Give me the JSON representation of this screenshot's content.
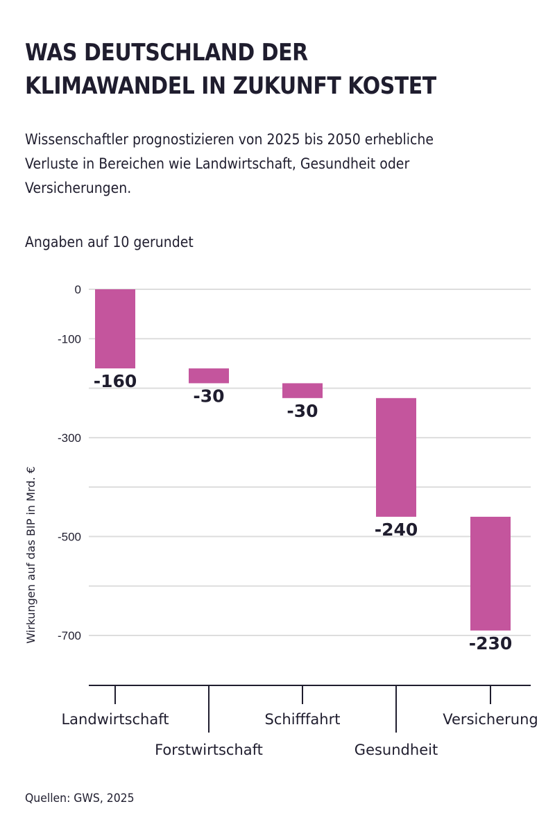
{
  "header": {
    "title_line1": "WAS DEUTSCHLAND DER",
    "title_line2": "KLIMAWANDEL IN ZUKUNFT KOSTET",
    "subtitle": "Wissenschaftler prognostizieren von 2025 bis 2050 erhebliche Verluste in Bereichen wie Landwirtschaft, Gesundheit oder Versicherungen.",
    "note": "Angaben auf 10 gerundet"
  },
  "footer": {
    "source": "Quellen: GWS, 2025"
  },
  "colors": {
    "bar": "#c4559d",
    "text": "#1f1d2e",
    "grid": "#dddddd",
    "axis": "#1f1d2e"
  },
  "chart_data": {
    "type": "bar",
    "subtype": "waterfall",
    "title": "WAS DEUTSCHLAND DER KLIMAWANDEL IN ZUKUNFT KOSTET",
    "xlabel": "",
    "ylabel": "Wirkungen auf das BIP in Mrd. €",
    "ylim": [
      -700,
      0
    ],
    "grid": true,
    "yticks": [
      0,
      -100,
      -200,
      -300,
      -400,
      -500,
      -600,
      -700
    ],
    "ytick_labels": [
      "0",
      "-100",
      "",
      "-300",
      "",
      "-500",
      "",
      "-700"
    ],
    "categories": [
      "Landwirtschaft",
      "Forstwirtschaft",
      "Schifffahrt",
      "Gesundheit",
      "Versicherung"
    ],
    "values": [
      -160,
      -30,
      -30,
      -240,
      -230
    ],
    "value_labels": [
      "-160",
      "-30",
      "-30",
      "-240",
      "-230"
    ],
    "cumulative_start": [
      0,
      -160,
      -190,
      -220,
      -460
    ],
    "cumulative_end": [
      -160,
      -190,
      -220,
      -460,
      -690
    ]
  }
}
